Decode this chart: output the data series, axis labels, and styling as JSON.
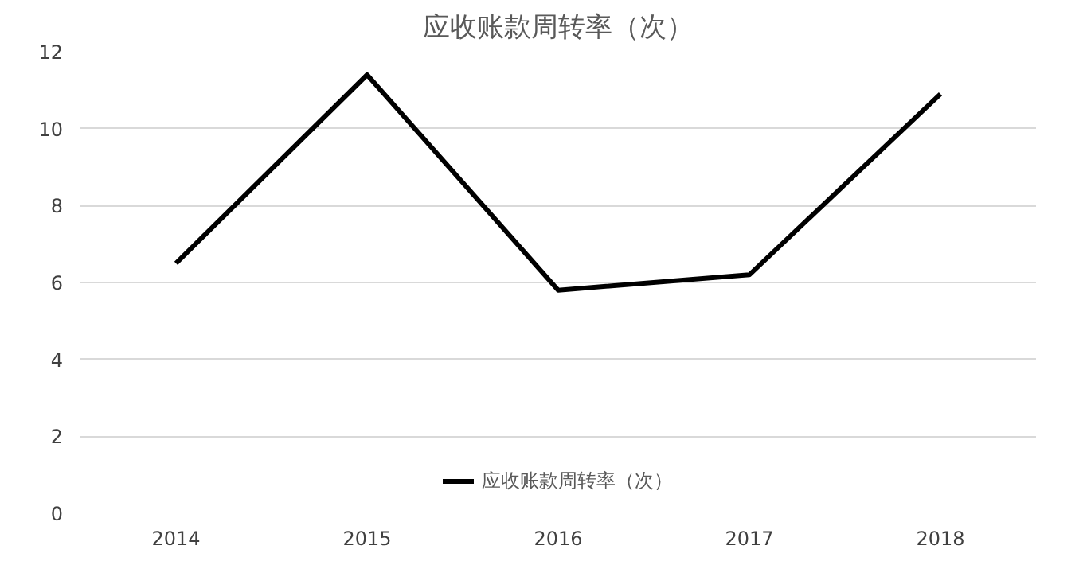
{
  "chart_data": {
    "type": "line",
    "title": "应收账款周转率（次）",
    "categories": [
      "2014",
      "2015",
      "2016",
      "2017",
      "2018"
    ],
    "series": [
      {
        "name": "应收账款周转率（次）",
        "color": "#000000",
        "values": [
          6.5,
          11.4,
          5.8,
          6.2,
          10.9
        ]
      }
    ],
    "ylim": [
      0,
      12
    ],
    "yticks": [
      0,
      2,
      4,
      6,
      8,
      10,
      12
    ],
    "grid": "y",
    "legend": "bottom",
    "marker": "none",
    "line_style": "solid"
  }
}
